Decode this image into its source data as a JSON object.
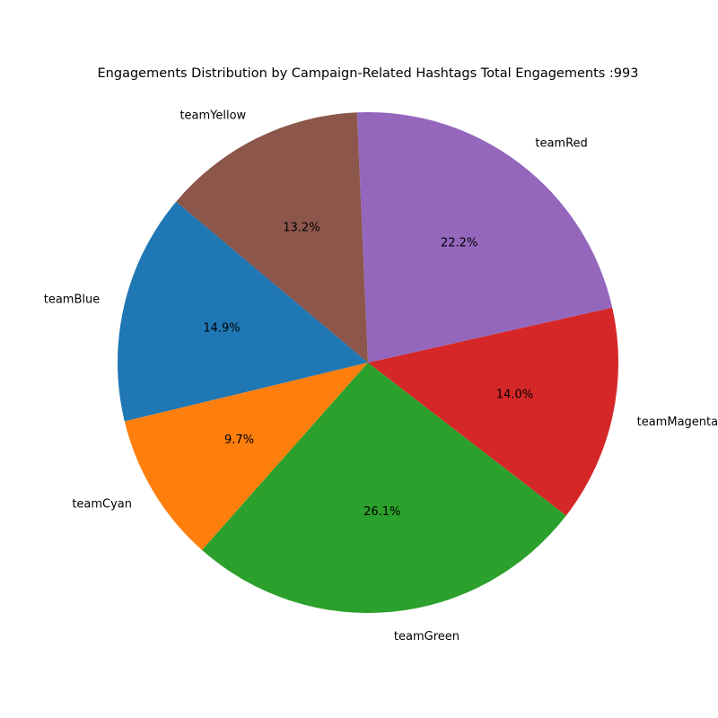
{
  "chart_data": {
    "type": "pie",
    "title": "Engagements Distribution by Campaign-Related Hashtags Total Engagements :993",
    "total": 993,
    "start_angle_deg": 140,
    "direction": "counterclockwise",
    "slices": [
      {
        "label": "teamBlue",
        "percent": 14.9,
        "percent_label": "14.9%",
        "color": "#1f77b4"
      },
      {
        "label": "teamCyan",
        "percent": 9.7,
        "percent_label": "9.7%",
        "color": "#ff7f0e"
      },
      {
        "label": "teamGreen",
        "percent": 26.1,
        "percent_label": "26.1%",
        "color": "#2ca02c"
      },
      {
        "label": "teamMagenta",
        "percent": 14.0,
        "percent_label": "14.0%",
        "color": "#d62728"
      },
      {
        "label": "teamRed",
        "percent": 22.2,
        "percent_label": "22.2%",
        "color": "#9467bd"
      },
      {
        "label": "teamYellow",
        "percent": 13.2,
        "percent_label": "13.2%",
        "color": "#8c564b"
      }
    ]
  }
}
